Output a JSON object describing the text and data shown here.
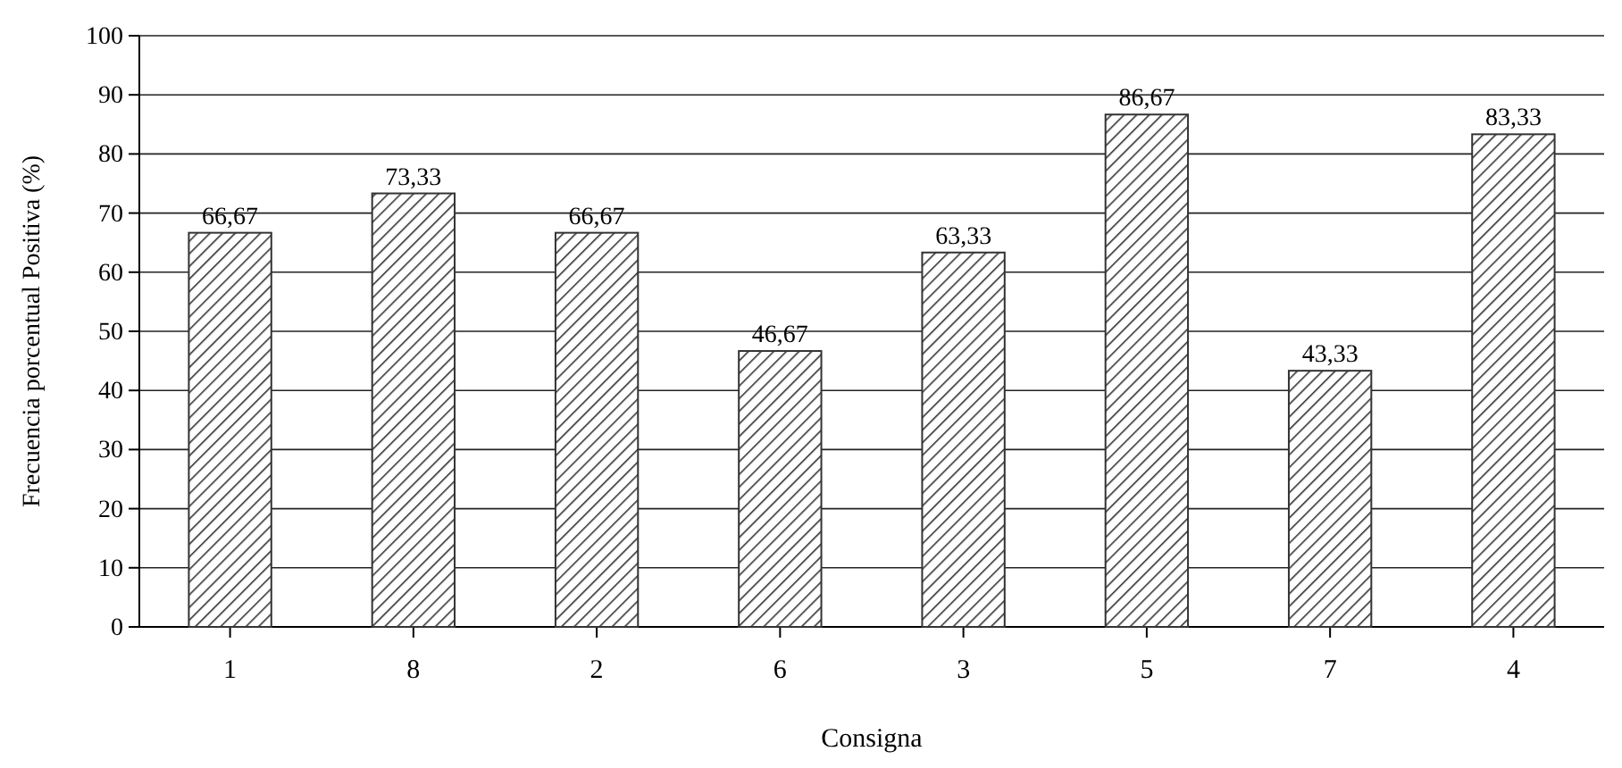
{
  "chart_data": {
    "type": "bar",
    "xlabel": "Consigna",
    "ylabel": "Frecuencia porcentual Positiva (%)",
    "categories": [
      "1",
      "8",
      "2",
      "6",
      "3",
      "5",
      "7",
      "4"
    ],
    "values": [
      66.67,
      73.33,
      66.67,
      46.67,
      63.33,
      86.67,
      43.33,
      83.33
    ],
    "value_labels": [
      "66,67",
      "73,33",
      "66,67",
      "46,67",
      "63,33",
      "86,67",
      "43,33",
      "83,33"
    ],
    "color": "#333333",
    "ylim": [
      0,
      100
    ],
    "yticks": [
      0,
      10,
      20,
      30,
      40,
      50,
      60,
      70,
      80,
      90,
      100
    ],
    "grid": "y"
  }
}
